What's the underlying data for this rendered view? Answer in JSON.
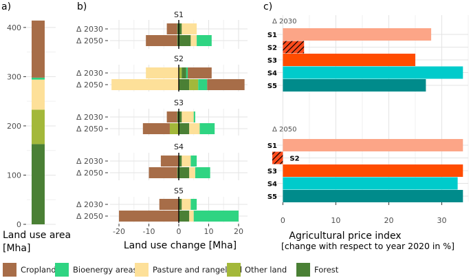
{
  "panel_labels": {
    "a": "a)",
    "b": "b)",
    "c": "c)"
  },
  "colors": {
    "Cropland": "#a76d48",
    "Bioenergy areas": "#2fd482",
    "Pasture and rangeland": "#fde099",
    "Other land": "#a3b83a",
    "Forest": "#4a8035",
    "S1": "#fca587",
    "S2": "#ff4b1c",
    "S3": "#ff4c00",
    "S4": "#00cbcb",
    "S5": "#008b8b"
  },
  "legend": [
    {
      "label": "Cropland",
      "color": "#a76d48"
    },
    {
      "label": "Bioenergy areas",
      "color": "#2fd482"
    },
    {
      "label": "Pasture and rangeland",
      "color": "#fde099"
    },
    {
      "label": "Other land",
      "color": "#a3b83a"
    },
    {
      "label": "Forest",
      "color": "#4a8035"
    }
  ],
  "chart_data": [
    {
      "id": "a",
      "type": "bar",
      "stacked": true,
      "xlabel": "Land use area",
      "ylabel_unit": "[Mha]",
      "ylim": [
        0,
        425
      ],
      "yticks": [
        0,
        100,
        200,
        300,
        400
      ],
      "segments": [
        {
          "name": "Forest",
          "value": 163
        },
        {
          "name": "Other land",
          "value": 70
        },
        {
          "name": "Pasture and rangeland",
          "value": 61
        },
        {
          "name": "Bioenergy areas",
          "value": 4
        },
        {
          "name": "Cropland",
          "value": 116
        }
      ]
    },
    {
      "id": "b",
      "type": "bar",
      "orientation": "horizontal",
      "stacked": "diverging",
      "xlabel": "Land use change [Mha]",
      "xlim": [
        -23,
        23
      ],
      "xticks": [
        -20,
        -10,
        0,
        10,
        20
      ],
      "scenarios": [
        {
          "name": "S1",
          "rows": [
            {
              "label": "Δ 2030",
              "neg": [
                [
                  "Forest",
                  -0.5
                ],
                [
                  "Cropland",
                  -3.5
                ]
              ],
              "pos": [
                [
                  "Forest",
                  1
                ],
                [
                  "Pasture and rangeland",
                  5
                ]
              ]
            },
            {
              "label": "Δ 2050",
              "neg": [
                [
                  "Forest",
                  -0.5
                ],
                [
                  "Cropland",
                  -10.5
                ]
              ],
              "pos": [
                [
                  "Forest",
                  4
                ],
                [
                  "Pasture and rangeland",
                  2
                ],
                [
                  "Bioenergy areas",
                  5
                ]
              ]
            }
          ]
        },
        {
          "name": "S2",
          "rows": [
            {
              "label": "Δ 2030",
              "neg": [
                [
                  "Pasture and rangeland",
                  -11
                ]
              ],
              "pos": [
                [
                  "Other land",
                  1
                ],
                [
                  "Forest",
                  1.5
                ],
                [
                  "Bioenergy areas",
                  0.5
                ],
                [
                  "Cropland",
                  8
                ]
              ]
            },
            {
              "label": "Δ 2050",
              "neg": [
                [
                  "Pasture and rangeland",
                  -22.5
                ]
              ],
              "pos": [
                [
                  "Forest",
                  3.5
                ],
                [
                  "Other land",
                  3
                ],
                [
                  "Bioenergy areas",
                  3
                ],
                [
                  "Cropland",
                  12.5
                ]
              ]
            }
          ]
        },
        {
          "name": "S3",
          "rows": [
            {
              "label": "Δ 2030",
              "neg": [
                [
                  "Forest",
                  -0.5
                ],
                [
                  "Cropland",
                  -3.5
                ]
              ],
              "pos": [
                [
                  "Forest",
                  1
                ],
                [
                  "Pasture and rangeland",
                  4
                ],
                [
                  "Bioenergy areas",
                  0.5
                ]
              ]
            },
            {
              "label": "Δ 2050",
              "neg": [
                [
                  "Other land",
                  -3
                ],
                [
                  "Cropland",
                  -9
                ]
              ],
              "pos": [
                [
                  "Forest",
                  3.5
                ],
                [
                  "Pasture and rangeland",
                  3.5
                ],
                [
                  "Bioenergy areas",
                  5
                ]
              ]
            }
          ]
        },
        {
          "name": "S4",
          "rows": [
            {
              "label": "Δ 2030",
              "neg": [
                [
                  "Cropland",
                  -6
                ]
              ],
              "pos": [
                [
                  "Forest",
                  1
                ],
                [
                  "Pasture and rangeland",
                  3
                ],
                [
                  "Bioenergy areas",
                  2
                ]
              ]
            },
            {
              "label": "Δ 2050",
              "neg": [
                [
                  "Forest",
                  -0.5
                ],
                [
                  "Cropland",
                  -9.5
                ]
              ],
              "pos": [
                [
                  "Forest",
                  3.5
                ],
                [
                  "Pasture and rangeland",
                  2
                ],
                [
                  "Bioenergy areas",
                  5
                ]
              ]
            }
          ]
        },
        {
          "name": "S5",
          "rows": [
            {
              "label": "Δ 2030",
              "neg": [
                [
                  "Cropland",
                  -6.5
                ]
              ],
              "pos": [
                [
                  "Forest",
                  1
                ],
                [
                  "Pasture and rangeland",
                  3
                ],
                [
                  "Bioenergy areas",
                  2
                ]
              ]
            },
            {
              "label": "Δ 2050",
              "neg": [
                [
                  "Cropland",
                  -20
                ]
              ],
              "pos": [
                [
                  "Forest",
                  3.5
                ],
                [
                  "Pasture and rangeland",
                  1.5
                ],
                [
                  "Bioenergy areas",
                  15
                ]
              ]
            }
          ]
        }
      ]
    },
    {
      "id": "c",
      "type": "bar",
      "orientation": "horizontal",
      "xlabel": "Agricultural price index",
      "xlabel_sub": "[change with respect to year 2020 in %]",
      "xlim": [
        -2,
        35
      ],
      "xticks": [
        0,
        10,
        20,
        30
      ],
      "groups": [
        {
          "name": "Δ 2030",
          "bars": [
            {
              "scenario": "S1",
              "value": 28
            },
            {
              "scenario": "S2",
              "value": 4,
              "hatched": true
            },
            {
              "scenario": "S3",
              "value": 25
            },
            {
              "scenario": "S4",
              "value": 34
            },
            {
              "scenario": "S5",
              "value": 27
            }
          ]
        },
        {
          "name": "Δ 2050",
          "bars": [
            {
              "scenario": "S1",
              "value": 34
            },
            {
              "scenario": "S2",
              "value": -2,
              "hatched": true
            },
            {
              "scenario": "S3",
              "value": 34
            },
            {
              "scenario": "S4",
              "value": 33
            },
            {
              "scenario": "S5",
              "value": 34
            }
          ]
        }
      ]
    }
  ]
}
